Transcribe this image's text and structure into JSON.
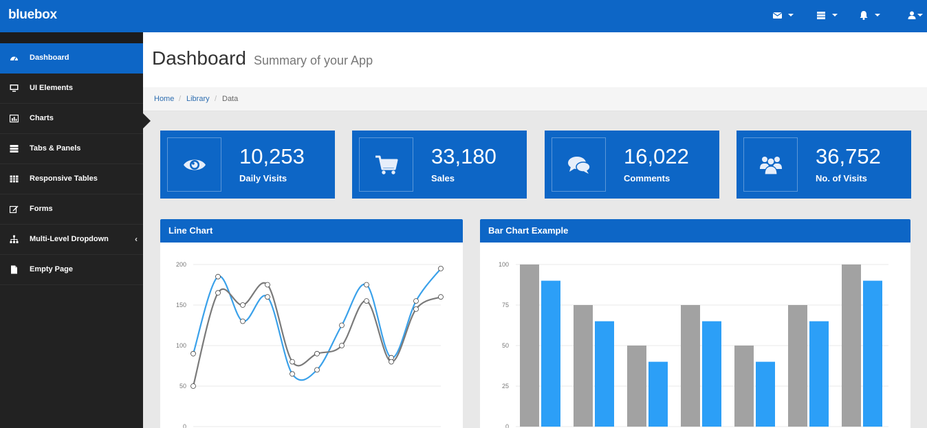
{
  "app": {
    "brand": "bluebox"
  },
  "topbar": {
    "icons": [
      {
        "name": "envelope-icon"
      },
      {
        "name": "tasks-icon"
      },
      {
        "name": "bell-icon"
      },
      {
        "name": "user-icon"
      }
    ]
  },
  "sidebar": {
    "items": [
      {
        "label": "Dashboard",
        "icon": "dashboard-icon",
        "active": true
      },
      {
        "label": "UI Elements",
        "icon": "desktop-icon"
      },
      {
        "label": "Charts",
        "icon": "bar-chart-icon"
      },
      {
        "label": "Tabs & Panels",
        "icon": "tabs-icon"
      },
      {
        "label": "Responsive Tables",
        "icon": "table-icon"
      },
      {
        "label": "Forms",
        "icon": "edit-icon"
      },
      {
        "label": "Multi-Level Dropdown",
        "icon": "sitemap-icon",
        "chevron": "‹"
      },
      {
        "label": "Empty Page",
        "icon": "file-icon"
      }
    ]
  },
  "header": {
    "title": "Dashboard",
    "subtitle": "Summary of your App"
  },
  "breadcrumb": {
    "items": [
      "Home",
      "Library",
      "Data"
    ],
    "separator": "/"
  },
  "stats": [
    {
      "value": "10,253",
      "label": "Daily Visits",
      "icon": "eye-icon"
    },
    {
      "value": "33,180",
      "label": "Sales",
      "icon": "cart-icon"
    },
    {
      "value": "16,022",
      "label": "Comments",
      "icon": "comments-icon"
    },
    {
      "value": "36,752",
      "label": "No. of Visits",
      "icon": "users-icon"
    }
  ],
  "colors": {
    "primary": "#0d66c6",
    "sidebar": "#222222",
    "series_blue": "#3aa1ea",
    "series_gray": "#7a7a7a",
    "bar_gray": "#a2a2a2",
    "bar_blue": "#2c9ff7"
  },
  "panels": {
    "line": {
      "title": "Line Chart"
    },
    "bar": {
      "title": "Bar Chart Example"
    }
  },
  "chart_data": [
    {
      "type": "line",
      "title": "Line Chart",
      "ylim": [
        0,
        200
      ],
      "yticks": [
        "0",
        "50",
        "100",
        "150",
        "200"
      ],
      "grid": true,
      "series": [
        {
          "color": "#3aa1ea",
          "values": [
            90,
            185,
            130,
            160,
            65,
            70,
            125,
            175,
            85,
            155,
            195
          ]
        },
        {
          "color": "#7a7a7a",
          "values": [
            50,
            165,
            150,
            175,
            80,
            90,
            100,
            155,
            80,
            145,
            160
          ]
        }
      ]
    },
    {
      "type": "bar",
      "title": "Bar Chart Example",
      "ylim": [
        0,
        100
      ],
      "yticks": [
        "0",
        "25",
        "50",
        "75",
        "100"
      ],
      "grid": true,
      "series": [
        {
          "color": "#a2a2a2",
          "values": [
            100,
            75,
            50,
            75,
            50,
            75,
            100
          ]
        },
        {
          "color": "#2c9ff7",
          "values": [
            90,
            65,
            40,
            65,
            40,
            65,
            90
          ]
        }
      ]
    }
  ]
}
